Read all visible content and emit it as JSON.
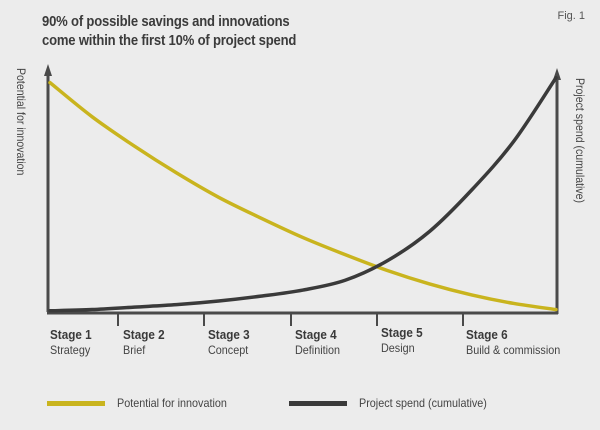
{
  "figure_label": "Fig. 1",
  "chart_data": {
    "type": "line",
    "title": "90% of possible savings and innovations come within the first 10% of project spend",
    "title_lines": [
      "90% of possible savings and innovations",
      "come within the first 10% of project spend"
    ],
    "xlabel": "",
    "ylabel_left": "Potential for innovation",
    "ylabel_right": "Project spend (cumulative)",
    "x_ticks": [
      {
        "stage": "Stage 1",
        "name": "Strategy"
      },
      {
        "stage": "Stage 2",
        "name": "Brief"
      },
      {
        "stage": "Stage 3",
        "name": "Concept"
      },
      {
        "stage": "Stage 4",
        "name": "Definition"
      },
      {
        "stage": "Stage 5",
        "name": "Design"
      },
      {
        "stage": "Stage 6",
        "name": "Build & commission"
      }
    ],
    "x_range": [
      0,
      6
    ],
    "y_range": [
      0,
      100
    ],
    "grid": false,
    "legend_position": "bottom",
    "series": [
      {
        "name": "Potential for innovation",
        "color": "#c9b41e",
        "x": [
          0,
          0.5,
          1,
          1.5,
          2,
          2.5,
          3,
          3.5,
          4,
          4.5,
          5,
          5.5,
          6
        ],
        "values": [
          94,
          80,
          68,
          57,
          47,
          38.5,
          30.5,
          23.5,
          17,
          11.5,
          7,
          3.5,
          1
        ]
      },
      {
        "name": "Project spend (cumulative)",
        "color": "#3a3a3a",
        "x": [
          0,
          0.5,
          1,
          1.5,
          2,
          2.5,
          3,
          3.5,
          4,
          4.5,
          5,
          5.5,
          6
        ],
        "values": [
          0.5,
          1,
          2,
          3,
          4.5,
          6.5,
          9,
          13,
          21,
          33,
          50,
          70,
          96
        ]
      }
    ]
  },
  "legend": [
    {
      "label": "Potential for innovation",
      "color": "#c9b41e"
    },
    {
      "label": "Project spend (cumulative)",
      "color": "#3a3a3a"
    }
  ]
}
